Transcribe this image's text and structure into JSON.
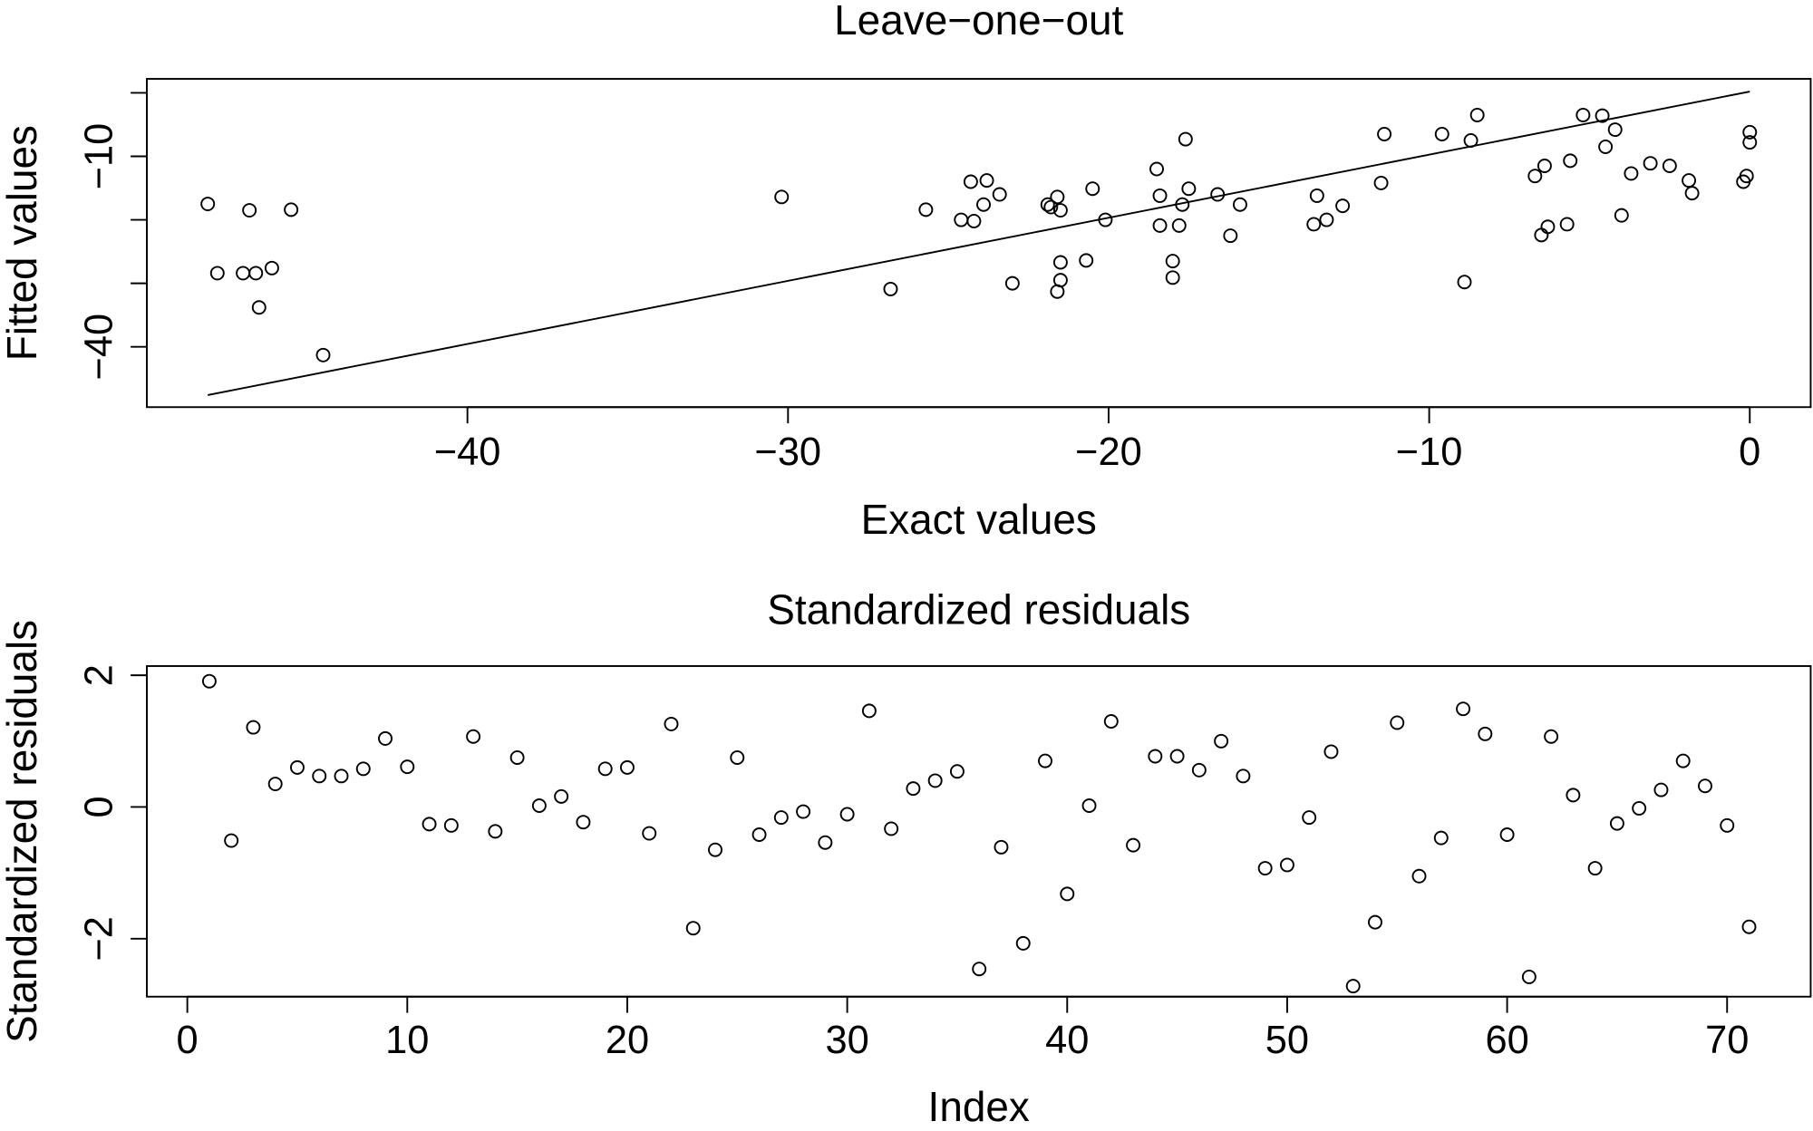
{
  "chart_data": [
    {
      "type": "scatter",
      "title": "Leave−one−out",
      "xlabel": "Exact values",
      "ylabel": "Fitted values",
      "x": [
        -48.1,
        -47.8,
        -46.8,
        -47.0,
        -46.6,
        -46.1,
        -46.5,
        -45.5,
        -44.5,
        -30.2,
        -26.8,
        -25.7,
        -24.6,
        -24.3,
        -23.8,
        -24.2,
        -23.9,
        -23.4,
        -23.0,
        -21.9,
        -21.8,
        -21.6,
        -21.5,
        -21.5,
        -21.5,
        -21.6,
        -20.7,
        -20.5,
        -20.1,
        -18.5,
        -18.4,
        -18.4,
        -18.0,
        -18.0,
        -17.8,
        -17.7,
        -17.6,
        -17.5,
        -16.6,
        -16.2,
        -15.9,
        -13.5,
        -13.6,
        -13.2,
        -12.7,
        -11.5,
        -11.4,
        -9.6,
        -8.9,
        -8.7,
        -8.5,
        -6.7,
        -6.4,
        -6.5,
        -6.3,
        -5.7,
        -5.6,
        -5.2,
        -4.6,
        -4.5,
        -4.2,
        -4.0,
        -3.7,
        -3.1,
        -2.5,
        -1.9,
        -1.8,
        -0.2,
        -0.1,
        0.0,
        0.0
      ],
      "y": [
        -17.5,
        -28.4,
        -18.5,
        -28.4,
        -28.4,
        -27.6,
        -33.8,
        -18.4,
        -41.3,
        -16.4,
        -30.9,
        -18.4,
        -20.0,
        -14.0,
        -13.8,
        -20.2,
        -17.6,
        -16.0,
        -30.0,
        -17.6,
        -18.0,
        -16.4,
        -18.5,
        -26.7,
        -29.5,
        -31.3,
        -26.4,
        -15.1,
        -20.0,
        -12.0,
        -16.2,
        -20.9,
        -26.5,
        -29.1,
        -20.9,
        -17.6,
        -7.3,
        -15.1,
        -16.0,
        -22.5,
        -17.6,
        -16.2,
        -20.7,
        -20.0,
        -17.8,
        -14.2,
        -6.5,
        -6.5,
        -29.8,
        -7.5,
        -3.5,
        -13.1,
        -11.5,
        -22.4,
        -21.1,
        -20.7,
        -10.7,
        -3.5,
        -3.6,
        -8.5,
        -5.8,
        -19.3,
        -12.7,
        -11.1,
        -11.5,
        -13.8,
        -15.8,
        -14.0,
        -13.1,
        -6.2,
        -7.8
      ],
      "line": {
        "x": [
          -48.1,
          0.0
        ],
        "y": [
          -47.6,
          0.2
        ]
      },
      "xlim": [
        -50.0,
        1.9
      ],
      "ylim": [
        -49.5,
        2.2
      ],
      "xticks": [
        {
          "value": -40,
          "label": "−40"
        },
        {
          "value": -30,
          "label": "−30"
        },
        {
          "value": -20,
          "label": "−20"
        },
        {
          "value": -10,
          "label": "−10"
        },
        0
      ],
      "yticks": [
        {
          "value": -10,
          "label": "−10"
        },
        {
          "value": -40,
          "label": "−40"
        }
      ],
      "yticks_unlabeled": [
        0,
        -20,
        -30
      ]
    },
    {
      "type": "scatter",
      "title": "Standardized residuals",
      "xlabel": "Index",
      "ylabel": "Standardized residuals",
      "x": [
        1,
        2,
        3,
        4,
        5,
        6,
        7,
        8,
        9,
        10,
        11,
        12,
        13,
        14,
        15,
        16,
        17,
        18,
        19,
        20,
        21,
        22,
        23,
        24,
        25,
        26,
        27,
        28,
        29,
        30,
        31,
        32,
        33,
        34,
        35,
        36,
        37,
        38,
        39,
        40,
        41,
        42,
        43,
        44,
        45,
        46,
        47,
        48,
        49,
        50,
        51,
        52,
        53,
        54,
        55,
        56,
        57,
        58,
        59,
        60,
        61,
        62,
        63,
        64,
        65,
        66,
        67,
        68,
        69,
        70,
        71
      ],
      "y": [
        1.91,
        -0.51,
        1.21,
        0.35,
        0.6,
        0.47,
        0.47,
        0.58,
        1.04,
        0.61,
        -0.26,
        -0.28,
        1.07,
        -0.37,
        0.75,
        0.02,
        0.16,
        -0.23,
        0.58,
        0.6,
        -0.4,
        1.26,
        -1.84,
        -0.65,
        0.75,
        -0.42,
        -0.16,
        -0.07,
        -0.54,
        -0.11,
        1.46,
        -0.33,
        0.28,
        0.4,
        0.54,
        -2.46,
        -0.61,
        -2.07,
        0.7,
        -1.32,
        0.02,
        1.3,
        -0.58,
        0.77,
        0.77,
        0.56,
        1.0,
        0.47,
        -0.93,
        -0.88,
        -0.16,
        0.84,
        -2.72,
        -1.75,
        1.28,
        -1.05,
        -0.47,
        1.49,
        1.11,
        -0.42,
        -2.58,
        1.07,
        0.18,
        -0.93,
        -0.25,
        -0.02,
        0.26,
        0.7,
        0.32,
        -0.28,
        -1.82
      ],
      "xlim": [
        -1.84,
        73.8
      ],
      "ylim": [
        -2.88,
        2.14
      ],
      "xticks": [
        0,
        10,
        20,
        30,
        40,
        50,
        60,
        70
      ],
      "yticks": [
        {
          "value": -2,
          "label": "−2"
        },
        0,
        2
      ]
    }
  ]
}
